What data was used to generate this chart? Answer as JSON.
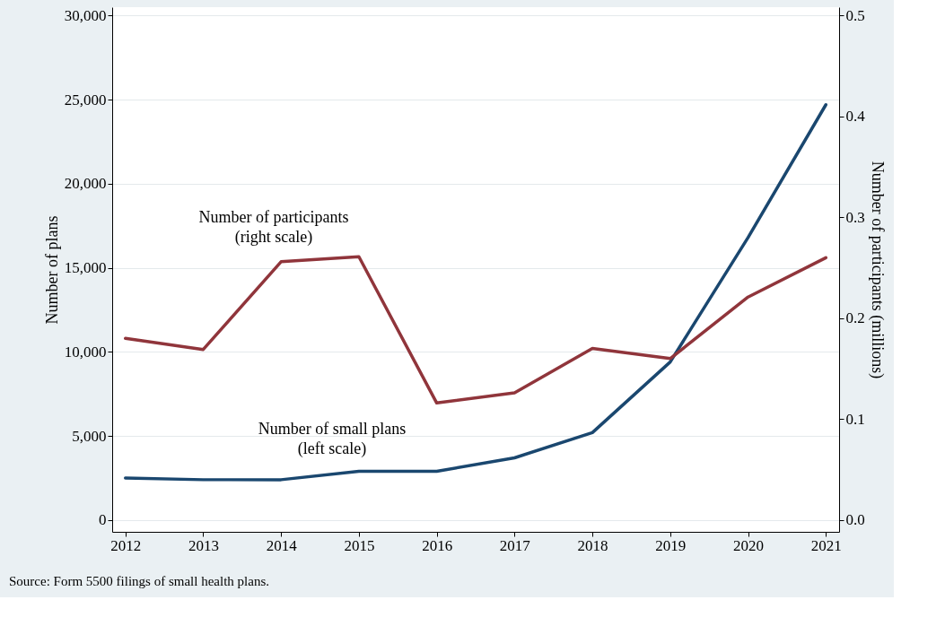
{
  "chart_data": {
    "type": "line",
    "ylabel": "Number of plans",
    "y2label": "Number of participants (millions)",
    "x": [
      2012,
      2013,
      2014,
      2015,
      2016,
      2017,
      2018,
      2019,
      2020,
      2021
    ],
    "xlim": [
      2011.83,
      2021.17
    ],
    "xticks": [
      2012,
      2013,
      2014,
      2015,
      2016,
      2017,
      2018,
      2019,
      2020,
      2021
    ],
    "ylim": [
      -700,
      30500
    ],
    "yticks": [
      {
        "value": 0,
        "label": "0"
      },
      {
        "value": 5000,
        "label": "5,000"
      },
      {
        "value": 10000,
        "label": "10,000"
      },
      {
        "value": 15000,
        "label": "15,000"
      },
      {
        "value": 20000,
        "label": "20,000"
      },
      {
        "value": 25000,
        "label": "25,000"
      },
      {
        "value": 30000,
        "label": "30,000"
      }
    ],
    "y2lim": [
      -0.0117,
      0.5083
    ],
    "y2ticks": [
      {
        "value": 0,
        "label": "0.0"
      },
      {
        "value": 0.1,
        "label": "0.1"
      },
      {
        "value": 0.2,
        "label": "0.2"
      },
      {
        "value": 0.3,
        "label": "0.3"
      },
      {
        "value": 0.4,
        "label": "0.4"
      },
      {
        "value": 0.5,
        "label": "0.5"
      }
    ],
    "series": [
      {
        "color": "#1a476f",
        "values": [
          2500,
          2400,
          2400,
          2900,
          2900,
          3700,
          5200,
          9400,
          16800,
          24700
        ]
      },
      {
        "color": "#90353b",
        "axis": "y2",
        "values": [
          0.18,
          0.169,
          0.256,
          0.261,
          0.116,
          0.126,
          0.17,
          0.16,
          0.221,
          0.26
        ]
      }
    ],
    "annotations": [
      "Number of participants\n(right scale)",
      "Number of small plans\n(left scale)",
      "Source: Form 5500 filings of small health plans."
    ],
    "grid": "y"
  }
}
